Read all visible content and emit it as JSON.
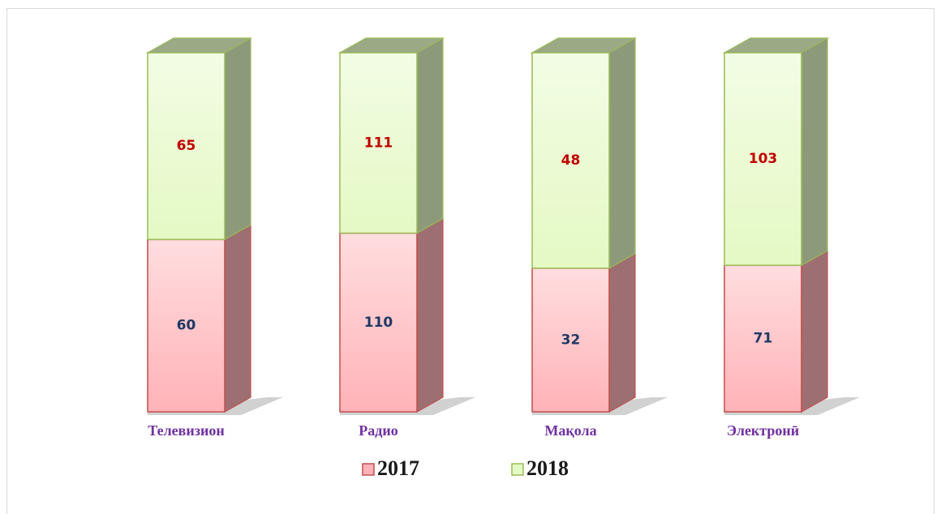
{
  "chart_data": {
    "type": "bar",
    "stacking": "percent",
    "categories": [
      "Телевизион",
      "Радио",
      "Мақола",
      "Электронӣ"
    ],
    "series": [
      {
        "name": "2017",
        "color": "#ffb3b8",
        "edge_color": "#c0504d",
        "label_color": "#1f3864",
        "values": [
          60,
          110,
          32,
          71
        ]
      },
      {
        "name": "2018",
        "color": "#e4f9c4",
        "edge_color": "#9bbb59",
        "label_color": "#c00000",
        "values": [
          65,
          111,
          48,
          103
        ]
      }
    ],
    "legend": "bottom"
  }
}
